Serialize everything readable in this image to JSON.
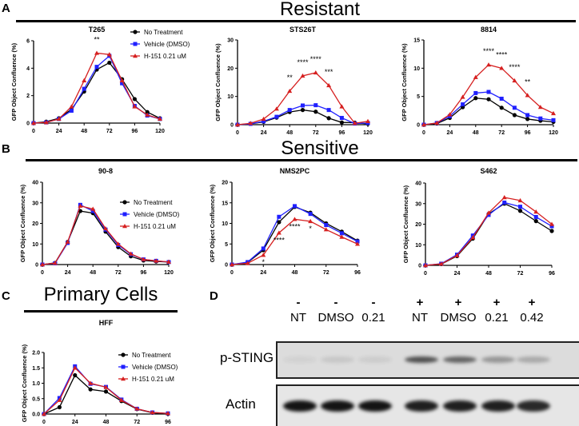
{
  "panels": {
    "a": "A",
    "b": "B",
    "c": "C",
    "d": "D"
  },
  "sections": {
    "resistant": "Resistant",
    "sensitive": "Sensitive",
    "primary": "Primary Cells"
  },
  "colors": {
    "no_treatment": "#000000",
    "vehicle": "#2020ff",
    "h151": "#d62020"
  },
  "chart_data": [
    {
      "type": "line",
      "title": "T265",
      "ylabel": "GFP Object Confluence (%)",
      "xlim": [
        0,
        120
      ],
      "xticks": [
        0,
        24,
        48,
        72,
        96,
        120
      ],
      "ylim": [
        0,
        6
      ],
      "yticks": [
        0,
        2,
        4,
        6
      ],
      "legend": true,
      "x": [
        0,
        12,
        24,
        36,
        48,
        60,
        72,
        84,
        96,
        108,
        120
      ],
      "series": [
        {
          "name": "No Treatment",
          "values": [
            0,
            0.1,
            0.35,
            1.0,
            2.3,
            3.9,
            4.4,
            3.2,
            1.75,
            0.8,
            0.35
          ]
        },
        {
          "name": "Vehicle (DMSO)",
          "values": [
            0,
            0.05,
            0.3,
            0.9,
            2.5,
            4.1,
            4.9,
            2.9,
            1.25,
            0.55,
            0.3
          ]
        },
        {
          "name": "H-151 0.21 uM",
          "values": [
            0,
            0.05,
            0.3,
            1.2,
            3.1,
            5.1,
            5.0,
            3.1,
            1.2,
            0.6,
            0.3
          ]
        }
      ],
      "annotations": [
        {
          "x": 60,
          "text": "**",
          "pos": "above"
        }
      ]
    },
    {
      "type": "line",
      "title": "STS26T",
      "ylabel": "GFP Object Confluence (%)",
      "xlim": [
        0,
        120
      ],
      "xticks": [
        0,
        24,
        48,
        72,
        96,
        120
      ],
      "ylim": [
        0,
        30
      ],
      "yticks": [
        0,
        10,
        20,
        30
      ],
      "x": [
        0,
        12,
        24,
        36,
        48,
        60,
        72,
        84,
        96,
        108,
        120
      ],
      "series": [
        {
          "name": "No Treatment",
          "values": [
            0,
            0.3,
            1.0,
            2.5,
            4.5,
            5.2,
            4.6,
            2.3,
            0.8,
            0.7,
            0.3
          ]
        },
        {
          "name": "Vehicle (DMSO)",
          "values": [
            0,
            0.3,
            1.2,
            2.8,
            5.2,
            6.8,
            6.9,
            5.2,
            2.4,
            0.4,
            0.6
          ]
        },
        {
          "name": "H-151 0.21 uM",
          "values": [
            0,
            0.5,
            2.0,
            5.6,
            11.9,
            17.3,
            18.4,
            13.9,
            6.4,
            0.5,
            1.2
          ]
        }
      ],
      "annotations": [
        {
          "x": 48,
          "text": "**",
          "pos": "above"
        },
        {
          "x": 60,
          "text": "****",
          "pos": "above"
        },
        {
          "x": 72,
          "text": "****",
          "pos": "above"
        },
        {
          "x": 84,
          "text": "***",
          "pos": "above"
        }
      ]
    },
    {
      "type": "line",
      "title": "8814",
      "ylabel": "GFP Object Confluence (%)",
      "xlim": [
        0,
        120
      ],
      "xticks": [
        0,
        24,
        48,
        72,
        96,
        120
      ],
      "ylim": [
        0,
        15
      ],
      "yticks": [
        0,
        5,
        10,
        15
      ],
      "x": [
        0,
        12,
        24,
        36,
        48,
        60,
        72,
        84,
        96,
        108,
        120
      ],
      "series": [
        {
          "name": "No Treatment",
          "values": [
            0,
            0.2,
            1.2,
            3.1,
            4.7,
            4.5,
            3.0,
            1.7,
            1.0,
            0.7,
            0.5
          ]
        },
        {
          "name": "Vehicle (DMSO)",
          "values": [
            0,
            0.3,
            1.5,
            3.6,
            5.6,
            5.8,
            4.6,
            3.0,
            1.7,
            1.1,
            0.8
          ]
        },
        {
          "name": "H-151 0.21 uM",
          "values": [
            0,
            0.3,
            1.8,
            4.9,
            8.4,
            10.6,
            10.0,
            7.8,
            5.2,
            3.1,
            2.0
          ]
        }
      ],
      "annotations": [
        {
          "x": 60,
          "text": "****",
          "pos": "above"
        },
        {
          "x": 72,
          "text": "****",
          "pos": "above"
        },
        {
          "x": 84,
          "text": "****",
          "pos": "above"
        },
        {
          "x": 96,
          "text": "**",
          "pos": "above"
        }
      ]
    },
    {
      "type": "line",
      "title": "90-8",
      "ylabel": "GFP Object Confluence (%)",
      "xlim": [
        0,
        120
      ],
      "xticks": [
        0,
        24,
        48,
        72,
        96,
        120
      ],
      "ylim": [
        0,
        40
      ],
      "yticks": [
        0,
        10,
        20,
        30,
        40
      ],
      "legend": true,
      "x": [
        0,
        12,
        24,
        36,
        48,
        60,
        72,
        84,
        96,
        108,
        120
      ],
      "series": [
        {
          "name": "No Treatment",
          "values": [
            0,
            0.8,
            11,
            26,
            25,
            16,
            8.5,
            4,
            2,
            1.5,
            1.2
          ]
        },
        {
          "name": "Vehicle (DMSO)",
          "values": [
            0,
            0.6,
            10.5,
            29,
            26,
            17,
            9.5,
            5,
            2.5,
            1.8,
            1.2
          ]
        },
        {
          "name": "H-151 0.21 uM",
          "values": [
            0,
            0.7,
            11,
            28.5,
            27,
            17.5,
            10,
            5.2,
            2.5,
            1.8,
            1.3
          ]
        }
      ],
      "annotations": []
    },
    {
      "type": "line",
      "title": "NMS2PC",
      "ylabel": "GFP Object Confluence (%)",
      "xlim": [
        0,
        96
      ],
      "xticks": [
        0,
        24,
        48,
        72,
        96
      ],
      "ylim": [
        0,
        20
      ],
      "yticks": [
        0,
        5,
        10,
        15,
        20
      ],
      "x": [
        0,
        12,
        24,
        36,
        48,
        60,
        72,
        84,
        96
      ],
      "series": [
        {
          "name": "No Treatment",
          "values": [
            0,
            0.5,
            3.5,
            10.3,
            14.0,
            12.6,
            10,
            8,
            5.8
          ]
        },
        {
          "name": "Vehicle (DMSO)",
          "values": [
            0,
            0.6,
            3.9,
            11.6,
            14.2,
            12.3,
            9.6,
            7.6,
            5.6
          ]
        },
        {
          "name": "H-151 0.21 uM",
          "values": [
            0,
            0.3,
            2.3,
            7.7,
            11,
            10.5,
            8.5,
            6.7,
            5
          ]
        }
      ],
      "annotations": [
        {
          "x": 24,
          "text": "*",
          "pos": "below"
        },
        {
          "x": 36,
          "text": "****",
          "pos": "below"
        },
        {
          "x": 48,
          "text": "****",
          "pos": "below"
        },
        {
          "x": 60,
          "text": "*",
          "pos": "below"
        }
      ]
    },
    {
      "type": "line",
      "title": "S462",
      "ylabel": "GFP Object Confluence (%)",
      "xlim": [
        0,
        96
      ],
      "xticks": [
        0,
        24,
        48,
        72,
        96
      ],
      "ylim": [
        0,
        40
      ],
      "yticks": [
        0,
        10,
        20,
        30,
        40
      ],
      "x": [
        0,
        12,
        24,
        36,
        48,
        60,
        72,
        84,
        96
      ],
      "series": [
        {
          "name": "No Treatment",
          "values": [
            0,
            0.6,
            4.5,
            13,
            25,
            30,
            26.5,
            21.5,
            16.7
          ]
        },
        {
          "name": "Vehicle (DMSO)",
          "values": [
            0,
            0.8,
            5.2,
            14.5,
            24.5,
            30.5,
            28.5,
            23.5,
            19
          ]
        },
        {
          "name": "H-151 0.21 uM",
          "values": [
            0,
            0.7,
            4.8,
            13.5,
            25.5,
            33,
            31.5,
            26,
            20
          ]
        }
      ],
      "annotations": []
    },
    {
      "type": "line",
      "title": "HFF",
      "ylabel": "GFP Object Confluence (%)",
      "xlim": [
        0,
        96
      ],
      "xticks": [
        0,
        24,
        48,
        72,
        96
      ],
      "ylim": [
        0,
        2
      ],
      "yticks": [
        "0.0",
        "0.5",
        "1.0",
        "1.5",
        "2.0"
      ],
      "legend": true,
      "x": [
        0,
        12,
        24,
        36,
        48,
        60,
        72,
        84,
        96
      ],
      "series": [
        {
          "name": "No Treatment",
          "values": [
            0,
            0.22,
            1.26,
            0.8,
            0.73,
            0.42,
            0.16,
            0.04,
            0.01
          ]
        },
        {
          "name": "Vehicle (DMSO)",
          "values": [
            0,
            0.52,
            1.55,
            0.98,
            0.88,
            0.47,
            0.17,
            0.05,
            0.02
          ]
        },
        {
          "name": "H-151 0.21 uM",
          "values": [
            0,
            0.45,
            1.5,
            1.0,
            0.87,
            0.45,
            0.17,
            0.05,
            0.02
          ]
        }
      ],
      "annotations": []
    }
  ],
  "blot": {
    "lanes": [
      {
        "sign": "-",
        "name": "NT"
      },
      {
        "sign": "-",
        "name": "DMSO"
      },
      {
        "sign": "-",
        "name": "0.21"
      },
      {
        "sign": "+",
        "name": "NT"
      },
      {
        "sign": "+",
        "name": "DMSO"
      },
      {
        "sign": "+",
        "name": "0.21"
      },
      {
        "sign": "+",
        "name": "0.42"
      }
    ],
    "rows": [
      {
        "label": "p-STING",
        "intensity": [
          0.05,
          0.1,
          0.08,
          0.7,
          0.6,
          0.35,
          0.25
        ]
      },
      {
        "label": "Actin",
        "intensity": [
          1,
          1,
          1,
          0.95,
          0.95,
          0.95,
          0.9
        ]
      }
    ]
  }
}
